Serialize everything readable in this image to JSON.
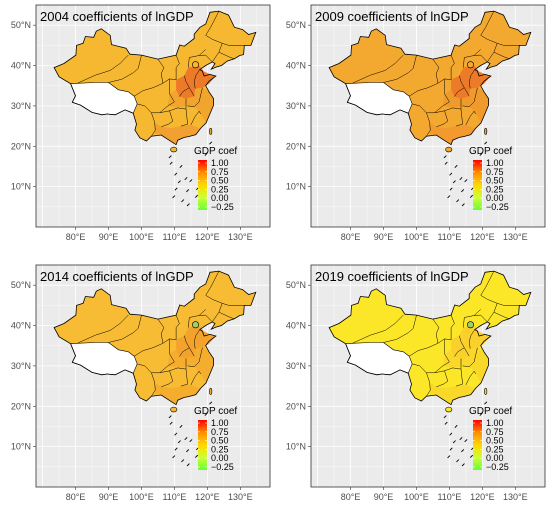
{
  "figure": {
    "panels": [
      {
        "title": "2004 coefficients of lnGDP",
        "year": "2004",
        "base_color": "#f5b830",
        "east_color": "#f2a52c",
        "hot_color": "#ed7a28",
        "hot_level": 0.9,
        "south_color": "#f2a032",
        "beijing_color": "#f5b830"
      },
      {
        "title": "2009 coefficients of lnGDP",
        "year": "2009",
        "base_color": "#f3a930",
        "east_color": "#f19a2c",
        "hot_color": "#ed7a28",
        "hot_level": 0.85,
        "south_color": "#f29a2e",
        "beijing_color": "#f3a930"
      },
      {
        "title": "2014 coefficients of lnGDP",
        "year": "2014",
        "base_color": "#f7bb34",
        "east_color": "#f5ad2e",
        "hot_color": "#f3a32c",
        "hot_level": 0.7,
        "south_color": "#f5ad2e",
        "beijing_color": "#9dcf6a"
      },
      {
        "title": "2019 coefficients of lnGDP",
        "year": "2019",
        "base_color": "#fbe628",
        "east_color": "#f9d82a",
        "hot_color": "#f9d02c",
        "hot_level": 0.45,
        "south_color": "#f9d82a",
        "beijing_color": "#9dcf6a"
      }
    ],
    "x_ticks": [
      "80°E",
      "90°E",
      "100°E",
      "110°E",
      "120°E",
      "130°E"
    ],
    "y_ticks": [
      "10°N",
      "20°N",
      "30°N",
      "40°N",
      "50°N"
    ],
    "legend": {
      "title": "GDP coef",
      "labels": [
        "1.00",
        "0.75",
        "0.50",
        "0.25",
        "0.00",
        "−0.25"
      ],
      "gradient": [
        "#ff0000",
        "#ff8c00",
        "#ffd700",
        "#ccff33",
        "#66ff33"
      ]
    },
    "colors": {
      "panel_bg": "#ebebeb",
      "grid": "#ffffff",
      "tibet_fill": "#ffffff",
      "border": "#000000"
    }
  }
}
